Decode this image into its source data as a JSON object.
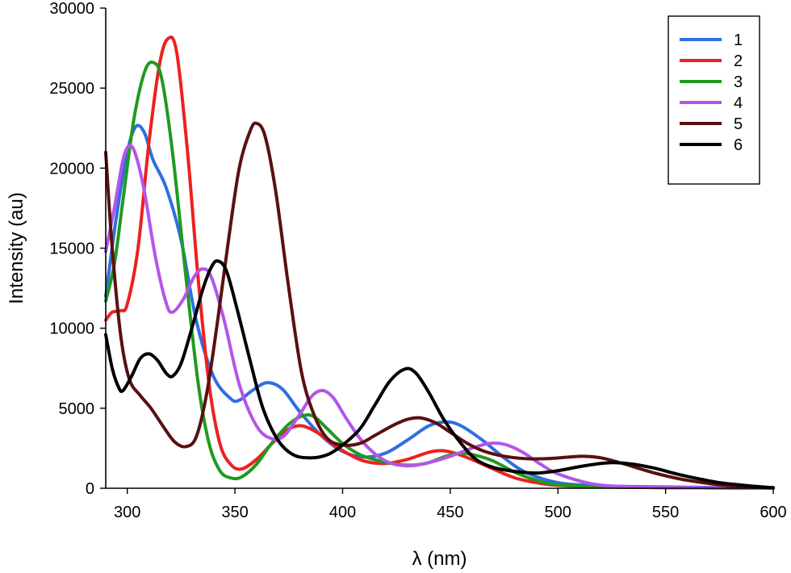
{
  "chart_data": {
    "type": "line",
    "title": "",
    "xlabel": "λ (nm)",
    "ylabel": "Intensity (au)",
    "xlim": [
      290,
      600
    ],
    "ylim": [
      0,
      30000
    ],
    "xticks": [
      300,
      350,
      400,
      450,
      500,
      550,
      600
    ],
    "yticks": [
      0,
      5000,
      10000,
      15000,
      20000,
      25000,
      30000
    ],
    "grid": false,
    "legend_position": "top-right",
    "series": [
      {
        "name": "1",
        "color": "#2f6fe0",
        "points": [
          [
            290,
            12000
          ],
          [
            295,
            17000
          ],
          [
            300,
            21000
          ],
          [
            304,
            22600
          ],
          [
            308,
            22200
          ],
          [
            312,
            20500
          ],
          [
            318,
            18800
          ],
          [
            325,
            15500
          ],
          [
            332,
            10500
          ],
          [
            340,
            7000
          ],
          [
            348,
            5600
          ],
          [
            352,
            5500
          ],
          [
            358,
            6100
          ],
          [
            365,
            6600
          ],
          [
            372,
            6200
          ],
          [
            380,
            4800
          ],
          [
            390,
            3300
          ],
          [
            400,
            2300
          ],
          [
            410,
            1950
          ],
          [
            420,
            2200
          ],
          [
            430,
            3000
          ],
          [
            440,
            3900
          ],
          [
            448,
            4150
          ],
          [
            455,
            3900
          ],
          [
            465,
            3000
          ],
          [
            475,
            1900
          ],
          [
            485,
            1000
          ],
          [
            500,
            350
          ],
          [
            520,
            150
          ],
          [
            550,
            80
          ],
          [
            580,
            40
          ],
          [
            600,
            20
          ]
        ]
      },
      {
        "name": "2",
        "color": "#ee2020",
        "points": [
          [
            290,
            10500
          ],
          [
            293,
            11000
          ],
          [
            297,
            11100
          ],
          [
            300,
            11500
          ],
          [
            305,
            15000
          ],
          [
            310,
            21500
          ],
          [
            315,
            26500
          ],
          [
            319,
            28100
          ],
          [
            323,
            27200
          ],
          [
            328,
            21000
          ],
          [
            333,
            13000
          ],
          [
            338,
            6500
          ],
          [
            343,
            2800
          ],
          [
            348,
            1500
          ],
          [
            353,
            1200
          ],
          [
            360,
            1800
          ],
          [
            368,
            2900
          ],
          [
            375,
            3700
          ],
          [
            381,
            3900
          ],
          [
            388,
            3500
          ],
          [
            395,
            2800
          ],
          [
            402,
            2200
          ],
          [
            410,
            1700
          ],
          [
            420,
            1550
          ],
          [
            430,
            1800
          ],
          [
            440,
            2250
          ],
          [
            446,
            2350
          ],
          [
            452,
            2200
          ],
          [
            460,
            1800
          ],
          [
            470,
            1200
          ],
          [
            480,
            650
          ],
          [
            490,
            350
          ],
          [
            500,
            180
          ],
          [
            520,
            80
          ],
          [
            550,
            40
          ],
          [
            580,
            15
          ],
          [
            600,
            5
          ]
        ]
      },
      {
        "name": "3",
        "color": "#1f9a1f",
        "points": [
          [
            290,
            11700
          ],
          [
            294,
            14000
          ],
          [
            298,
            18000
          ],
          [
            303,
            23000
          ],
          [
            308,
            26000
          ],
          [
            312,
            26600
          ],
          [
            316,
            25600
          ],
          [
            321,
            21000
          ],
          [
            327,
            13500
          ],
          [
            333,
            6500
          ],
          [
            338,
            2800
          ],
          [
            343,
            1100
          ],
          [
            348,
            650
          ],
          [
            353,
            700
          ],
          [
            360,
            1500
          ],
          [
            367,
            2800
          ],
          [
            375,
            4000
          ],
          [
            382,
            4550
          ],
          [
            387,
            4450
          ],
          [
            393,
            3700
          ],
          [
            400,
            2800
          ],
          [
            408,
            2100
          ],
          [
            416,
            1750
          ],
          [
            425,
            1500
          ],
          [
            433,
            1450
          ],
          [
            440,
            1600
          ],
          [
            448,
            2000
          ],
          [
            455,
            2200
          ],
          [
            462,
            2050
          ],
          [
            470,
            1700
          ],
          [
            480,
            1000
          ],
          [
            490,
            500
          ],
          [
            500,
            220
          ],
          [
            520,
            90
          ],
          [
            550,
            40
          ],
          [
            580,
            15
          ],
          [
            600,
            5
          ]
        ]
      },
      {
        "name": "4",
        "color": "#b455e8",
        "points": [
          [
            290,
            14800
          ],
          [
            294,
            17500
          ],
          [
            298,
            20500
          ],
          [
            301,
            21400
          ],
          [
            304,
            20800
          ],
          [
            308,
            18500
          ],
          [
            313,
            14500
          ],
          [
            318,
            11600
          ],
          [
            321,
            11000
          ],
          [
            326,
            11800
          ],
          [
            331,
            13200
          ],
          [
            335,
            13700
          ],
          [
            339,
            13200
          ],
          [
            345,
            10500
          ],
          [
            352,
            6500
          ],
          [
            360,
            3900
          ],
          [
            367,
            3100
          ],
          [
            373,
            3300
          ],
          [
            380,
            4600
          ],
          [
            386,
            5800
          ],
          [
            391,
            6100
          ],
          [
            396,
            5600
          ],
          [
            402,
            4300
          ],
          [
            410,
            2800
          ],
          [
            420,
            1700
          ],
          [
            430,
            1400
          ],
          [
            440,
            1600
          ],
          [
            450,
            2000
          ],
          [
            460,
            2500
          ],
          [
            468,
            2800
          ],
          [
            475,
            2750
          ],
          [
            483,
            2300
          ],
          [
            492,
            1500
          ],
          [
            500,
            900
          ],
          [
            515,
            300
          ],
          [
            530,
            100
          ],
          [
            550,
            40
          ],
          [
            580,
            15
          ],
          [
            600,
            5
          ]
        ]
      },
      {
        "name": "5",
        "color": "#5a1010",
        "points": [
          [
            290,
            21000
          ],
          [
            293,
            15000
          ],
          [
            297,
            9500
          ],
          [
            301,
            6800
          ],
          [
            306,
            5800
          ],
          [
            311,
            5000
          ],
          [
            317,
            3800
          ],
          [
            322,
            2900
          ],
          [
            327,
            2600
          ],
          [
            332,
            3200
          ],
          [
            337,
            6000
          ],
          [
            342,
            10500
          ],
          [
            347,
            15500
          ],
          [
            352,
            20000
          ],
          [
            357,
            22300
          ],
          [
            360,
            22800
          ],
          [
            364,
            22000
          ],
          [
            369,
            18500
          ],
          [
            375,
            12500
          ],
          [
            381,
            7200
          ],
          [
            387,
            4500
          ],
          [
            393,
            3100
          ],
          [
            400,
            2700
          ],
          [
            408,
            2800
          ],
          [
            415,
            3300
          ],
          [
            423,
            3900
          ],
          [
            430,
            4300
          ],
          [
            436,
            4400
          ],
          [
            443,
            4100
          ],
          [
            450,
            3500
          ],
          [
            458,
            2800
          ],
          [
            466,
            2300
          ],
          [
            475,
            2000
          ],
          [
            485,
            1850
          ],
          [
            495,
            1850
          ],
          [
            505,
            1950
          ],
          [
            512,
            2000
          ],
          [
            520,
            1900
          ],
          [
            530,
            1550
          ],
          [
            545,
            950
          ],
          [
            560,
            500
          ],
          [
            580,
            150
          ],
          [
            600,
            30
          ]
        ]
      },
      {
        "name": "6",
        "color": "#000000",
        "points": [
          [
            290,
            9600
          ],
          [
            293,
            7500
          ],
          [
            296,
            6300
          ],
          [
            298,
            6100
          ],
          [
            302,
            7000
          ],
          [
            306,
            8100
          ],
          [
            310,
            8400
          ],
          [
            314,
            8000
          ],
          [
            318,
            7200
          ],
          [
            321,
            7000
          ],
          [
            325,
            7800
          ],
          [
            330,
            10000
          ],
          [
            335,
            12400
          ],
          [
            339,
            13800
          ],
          [
            342,
            14200
          ],
          [
            346,
            13600
          ],
          [
            351,
            11200
          ],
          [
            357,
            8000
          ],
          [
            363,
            5000
          ],
          [
            370,
            3000
          ],
          [
            377,
            2100
          ],
          [
            385,
            1900
          ],
          [
            393,
            2100
          ],
          [
            400,
            2700
          ],
          [
            408,
            3700
          ],
          [
            415,
            5200
          ],
          [
            422,
            6700
          ],
          [
            429,
            7450
          ],
          [
            434,
            7200
          ],
          [
            440,
            6000
          ],
          [
            447,
            4300
          ],
          [
            455,
            2800
          ],
          [
            462,
            1800
          ],
          [
            470,
            1300
          ],
          [
            480,
            1050
          ],
          [
            490,
            950
          ],
          [
            500,
            1100
          ],
          [
            510,
            1350
          ],
          [
            520,
            1550
          ],
          [
            526,
            1600
          ],
          [
            535,
            1500
          ],
          [
            545,
            1250
          ],
          [
            555,
            900
          ],
          [
            565,
            600
          ],
          [
            575,
            350
          ],
          [
            585,
            200
          ],
          [
            595,
            80
          ],
          [
            600,
            40
          ]
        ]
      }
    ]
  }
}
